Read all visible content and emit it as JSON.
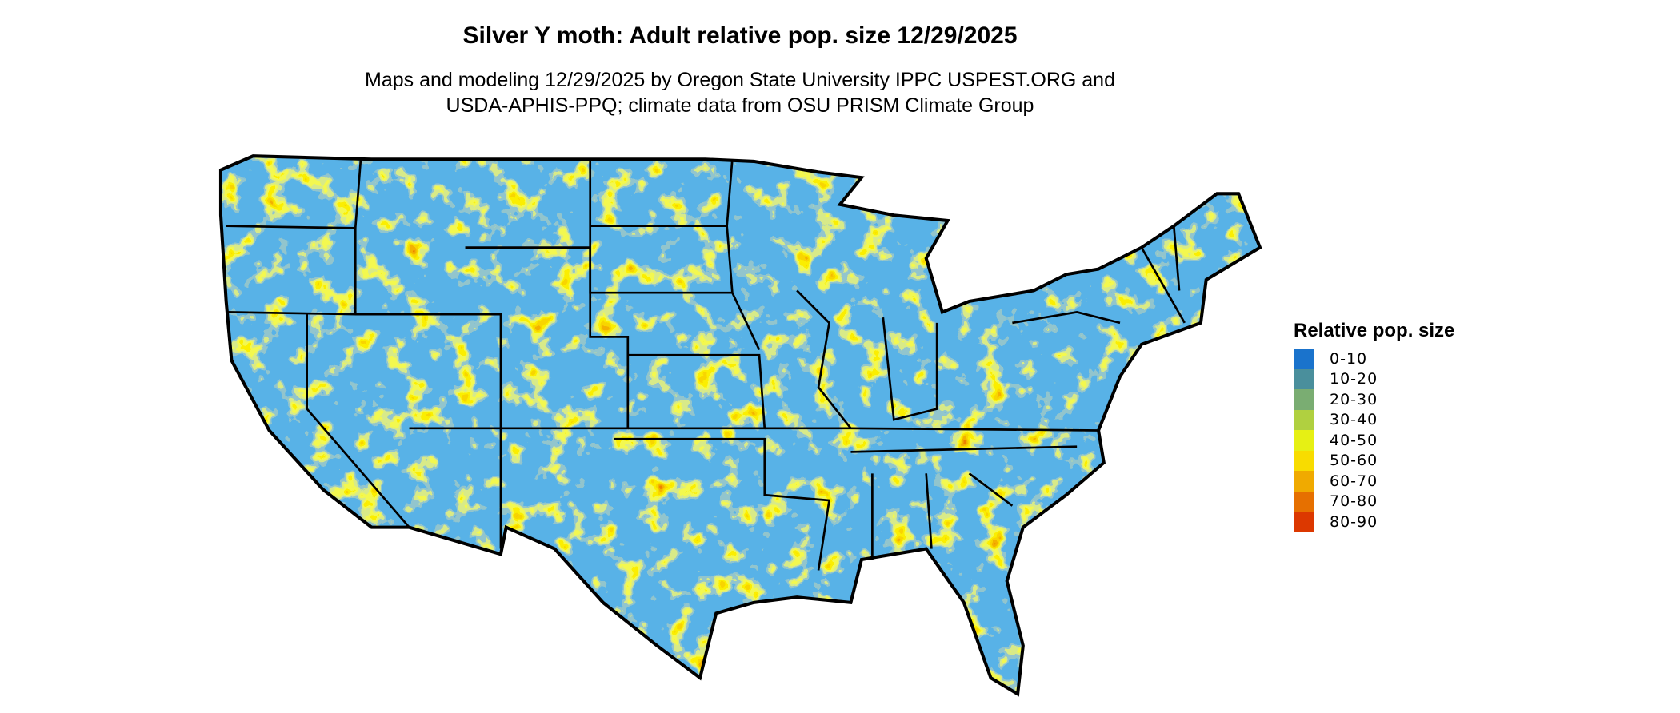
{
  "title": "Silver Y moth: Adult relative pop. size 12/29/2025",
  "subtitle_line1": "Maps and modeling 12/29/2025 by Oregon State University IPPC USPEST.ORG and",
  "subtitle_line2": "USDA-APHIS-PPQ; climate data from OSU PRISM Climate Group",
  "map": {
    "region": "Contiguous United States",
    "fill_pattern": "raster of relative population size, predominantly 0-10 with patches of 40-90"
  },
  "legend": {
    "title": "Relative pop. size",
    "items": [
      {
        "label": "0-10",
        "color": "#1a73cc"
      },
      {
        "label": "10-20",
        "color": "#4a8f9c"
      },
      {
        "label": "20-30",
        "color": "#7aad72"
      },
      {
        "label": "30-40",
        "color": "#b0d040"
      },
      {
        "label": "40-50",
        "color": "#e6f014"
      },
      {
        "label": "50-60",
        "color": "#f8dc00"
      },
      {
        "label": "60-70",
        "color": "#f0aa00"
      },
      {
        "label": "70-80",
        "color": "#e67000"
      },
      {
        "label": "80-90",
        "color": "#dc3800"
      }
    ]
  }
}
